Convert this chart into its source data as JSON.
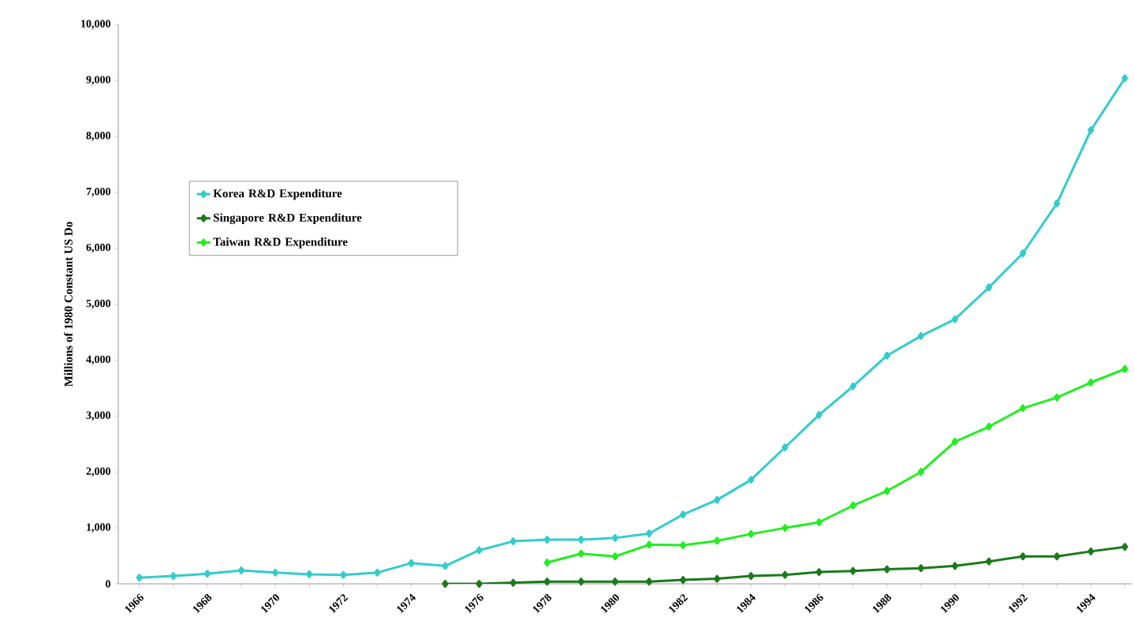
{
  "chart_data": {
    "type": "line",
    "ylabel": "Millions of 1980 Constant US Do",
    "categories": [
      "1966",
      null,
      "1968",
      null,
      "1970",
      null,
      "1972",
      null,
      "1974",
      null,
      "1976",
      null,
      "1978",
      null,
      "1980",
      null,
      "1982",
      null,
      "1984",
      null,
      "1986",
      null,
      "1988",
      null,
      "1990",
      null,
      "1992",
      null,
      "1994",
      null
    ],
    "ylim": [
      0,
      10000
    ],
    "yticks": [
      0,
      {
        "value": 1000,
        "label": "1,000"
      },
      {
        "value": 2000,
        "label": "2,000"
      },
      {
        "value": 3000,
        "label": "3,000"
      },
      {
        "value": 4000,
        "label": "4,000"
      },
      {
        "value": 5000,
        "label": "5,000"
      },
      {
        "value": 6000,
        "label": "6,000"
      },
      {
        "value": 7000,
        "label": "7,000"
      },
      {
        "value": 8000,
        "label": "8,000"
      },
      {
        "value": 9000,
        "label": "9,000"
      },
      {
        "value": 10000,
        "label": "10,000"
      }
    ],
    "grid": false,
    "legend": "left",
    "marker": "diamond",
    "line_style": "solid",
    "series": [
      {
        "name": "Korea R&D Expenditure",
        "color": "#33cccc",
        "values": [
          110,
          140,
          180,
          240,
          200,
          170,
          160,
          200,
          370,
          320,
          600,
          760,
          790,
          790,
          820,
          900,
          1240,
          1500,
          1860,
          2440,
          3020,
          3530,
          4080,
          4430,
          4730,
          5300,
          5910,
          6800,
          8110,
          9040
        ]
      },
      {
        "name": "Singapore R&D Expenditure",
        "color": "#1a7a1a",
        "values": [
          null,
          null,
          null,
          null,
          null,
          null,
          null,
          null,
          null,
          0,
          0,
          20,
          40,
          40,
          40,
          40,
          70,
          90,
          140,
          160,
          210,
          230,
          260,
          280,
          320,
          400,
          490,
          490,
          580,
          660
        ]
      },
      {
        "name": "Taiwan R&D Expenditure",
        "color": "#22ee22",
        "values": [
          null,
          null,
          null,
          null,
          null,
          null,
          null,
          null,
          null,
          null,
          null,
          null,
          380,
          540,
          490,
          700,
          690,
          770,
          890,
          1000,
          1100,
          1400,
          1660,
          2000,
          2540,
          2810,
          3140,
          3330,
          3600,
          3840
        ]
      }
    ]
  }
}
